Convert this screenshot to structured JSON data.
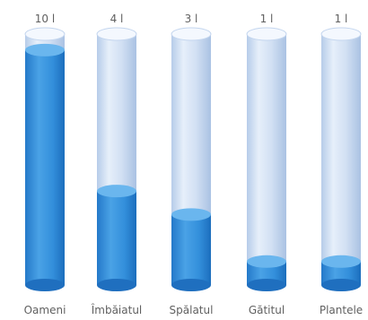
{
  "chart_data": {
    "type": "bar",
    "categories": [
      "Oameni",
      "Îmbăiatul",
      "Spălatul",
      "Gătitul",
      "Plantele"
    ],
    "value_labels": [
      "10 l",
      "4 l",
      "3 l",
      "1 l",
      "1 l"
    ],
    "values": [
      10,
      4,
      3,
      1,
      1
    ],
    "unit": "l",
    "ylim": [
      0,
      10.3
    ],
    "grid": false,
    "legend": "none",
    "colors": {
      "liquid": "#3a92dc",
      "liquid_top": "#6ab6ee",
      "tube": "#ccdcf2",
      "tube_top": "#f4f8fe",
      "label": "#606060"
    }
  }
}
